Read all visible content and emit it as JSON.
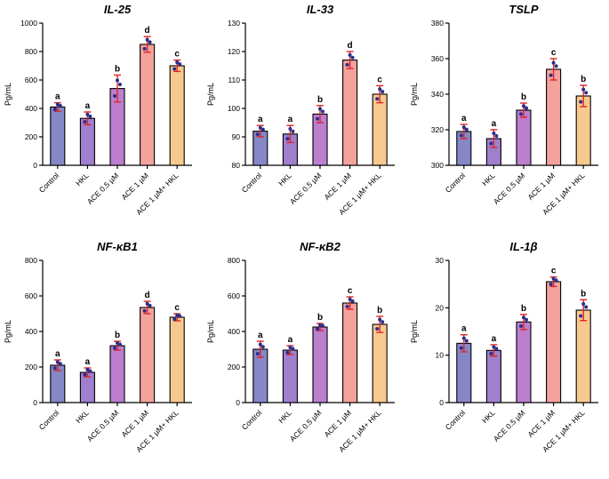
{
  "figure": {
    "description": "Six-panel bar chart figure of cytokine levels (Pg/mL) across treatment groups",
    "rows": 2,
    "cols": 3
  },
  "style": {
    "bar_colors": [
      "#8587c6",
      "#a07fcd",
      "#bb7fce",
      "#f4a29c",
      "#f8c98f"
    ],
    "bar_border_color": "#000000",
    "error_bar_color": "#e02428",
    "dot_color": "#2b2e8c",
    "letter_color": "#000000",
    "axis_color": "#000000",
    "background": "#ffffff"
  },
  "conditions": [
    "Control",
    "HKL",
    "ACE 0.5 µM",
    "ACE 1 µM",
    "ACE 1 µM+ HKL"
  ],
  "chart_data": [
    {
      "type": "bar",
      "title": "IL-25",
      "ylabel": "Pg/mL",
      "ylim": [
        0,
        1000
      ],
      "yticks": [
        0,
        200,
        400,
        600,
        800,
        1000
      ],
      "categories": [
        "Control",
        "HKL",
        "ACE 0.5 µM",
        "ACE 1 µM",
        "ACE 1 µM+ HKL"
      ],
      "values": [
        410,
        330,
        540,
        850,
        700
      ],
      "errors": [
        30,
        45,
        95,
        55,
        40
      ],
      "letters": [
        "a",
        "a",
        "b",
        "d",
        "c"
      ],
      "legend_position": "none",
      "grid": false
    },
    {
      "type": "bar",
      "title": "IL-33",
      "ylabel": "Pg/mL",
      "ylim": [
        80,
        130
      ],
      "yticks": [
        80,
        90,
        100,
        110,
        120,
        130
      ],
      "categories": [
        "Control",
        "HKL",
        "ACE 0.5 µM",
        "ACE 1 µM",
        "ACE 1 µM+ HKL"
      ],
      "values": [
        92,
        91,
        98,
        117,
        105
      ],
      "errors": [
        2,
        3,
        3,
        3,
        3
      ],
      "letters": [
        "a",
        "a",
        "b",
        "d",
        "c"
      ],
      "legend_position": "none",
      "grid": false
    },
    {
      "type": "bar",
      "title": "TSLP",
      "ylabel": "Pg/mL",
      "ylim": [
        300,
        380
      ],
      "yticks": [
        300,
        320,
        340,
        360,
        380
      ],
      "categories": [
        "Control",
        "HKL",
        "ACE 0.5 µM",
        "ACE 1 µM",
        "ACE 1 µM+ HKL"
      ],
      "values": [
        319,
        315,
        331,
        354,
        339
      ],
      "errors": [
        4,
        5,
        4,
        6,
        6
      ],
      "letters": [
        "a",
        "a",
        "b",
        "c",
        "b"
      ],
      "legend_position": "none",
      "grid": false
    },
    {
      "type": "bar",
      "title": "NF-κB1",
      "ylabel": "Pg/mL",
      "ylim": [
        0,
        800
      ],
      "yticks": [
        0,
        200,
        400,
        600,
        800
      ],
      "categories": [
        "Control",
        "HKL",
        "ACE 0.5 µM",
        "ACE 1 µM",
        "ACE 1 µM+ HKL"
      ],
      "values": [
        210,
        170,
        320,
        535,
        480
      ],
      "errors": [
        30,
        25,
        25,
        35,
        20
      ],
      "letters": [
        "a",
        "a",
        "b",
        "d",
        "c"
      ],
      "legend_position": "none",
      "grid": false
    },
    {
      "type": "bar",
      "title": "NF-κB2",
      "ylabel": "Pg/mL",
      "ylim": [
        0,
        800
      ],
      "yticks": [
        0,
        200,
        400,
        600,
        800
      ],
      "categories": [
        "Control",
        "HKL",
        "ACE 0.5 µM",
        "ACE 1 µM",
        "ACE 1 µM+ HKL"
      ],
      "values": [
        300,
        295,
        425,
        560,
        440
      ],
      "errors": [
        45,
        25,
        20,
        35,
        45
      ],
      "letters": [
        "a",
        "a",
        "b",
        "c",
        "b"
      ],
      "legend_position": "none",
      "grid": false
    },
    {
      "type": "bar",
      "title": "IL-1β",
      "ylabel": "Pg/mL",
      "ylim": [
        0,
        30
      ],
      "yticks": [
        0,
        10,
        20,
        30
      ],
      "categories": [
        "Control",
        "HKL",
        "ACE 0.5 µM",
        "ACE 1 µM",
        "ACE 1 µM+ HKL"
      ],
      "values": [
        12.5,
        11,
        17,
        25.5,
        19.5
      ],
      "errors": [
        1.8,
        1.2,
        1.6,
        1.0,
        2.2
      ],
      "letters": [
        "a",
        "a",
        "b",
        "c",
        "b"
      ],
      "legend_position": "none",
      "grid": false
    }
  ]
}
